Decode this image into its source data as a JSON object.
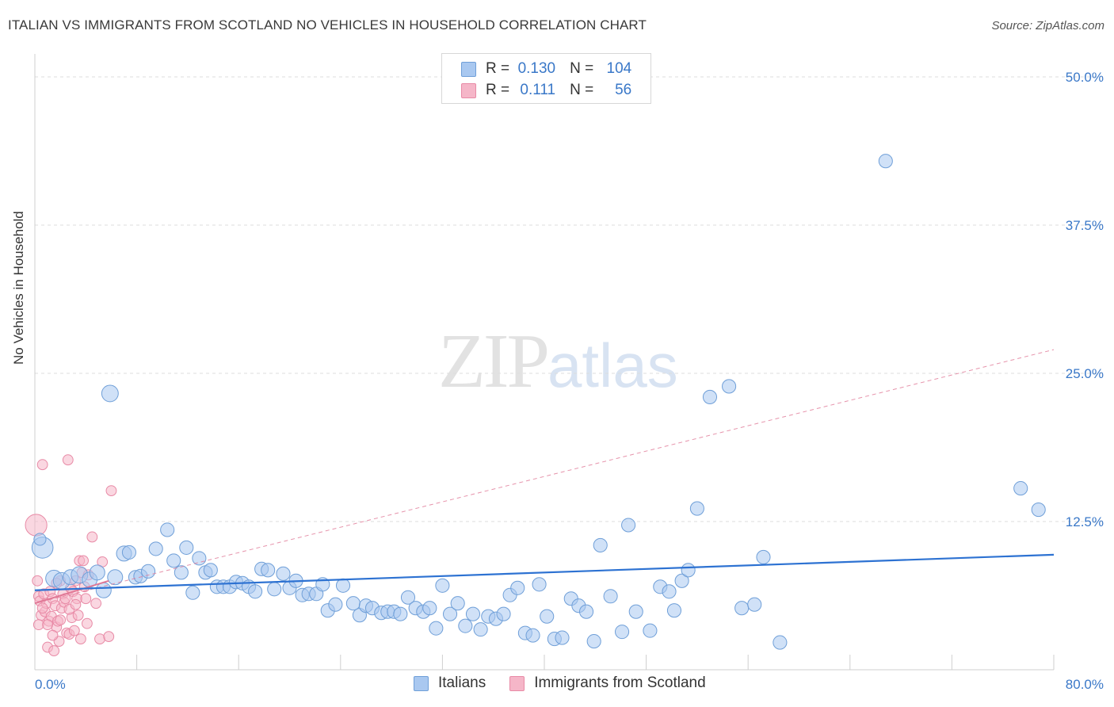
{
  "header": {
    "title": "ITALIAN VS IMMIGRANTS FROM SCOTLAND NO VEHICLES IN HOUSEHOLD CORRELATION CHART",
    "source": "Source: ZipAtlas.com"
  },
  "watermark": {
    "zip": "ZIP",
    "atlas": "atlas"
  },
  "legend": {
    "rows": [
      {
        "r_label": "R =",
        "r_value": "0.130",
        "n_label": "N =",
        "n_value": "104",
        "color": "#a9c8f0"
      },
      {
        "r_label": "R =",
        "r_value": "0.111",
        "n_label": "N =",
        "n_value": "56",
        "color": "#f5b6c8"
      }
    ]
  },
  "colors": {
    "blue_fill": "#a9c8f0",
    "blue_stroke": "#6f9fd8",
    "blue_line": "#2d72d2",
    "pink_fill": "#f5b6c8",
    "pink_stroke": "#e88aa6",
    "pink_line": "#e07896",
    "axis_text": "#3a78c8",
    "grid": "#dddddd"
  },
  "chart_data": {
    "type": "scatter",
    "title": "ITALIAN VS IMMIGRANTS FROM SCOTLAND NO VEHICLES IN HOUSEHOLD CORRELATION CHART",
    "xlabel": "",
    "ylabel": "No Vehicles in Household",
    "xlim": [
      0,
      80
    ],
    "ylim": [
      0,
      50
    ],
    "x_tick_labels": [
      "0.0%",
      "80.0%"
    ],
    "y_tick_labels": [
      "12.5%",
      "25.0%",
      "37.5%",
      "50.0%"
    ],
    "y_ticks": [
      12.5,
      25,
      37.5,
      50
    ],
    "series": [
      {
        "name": "Italians",
        "r": 0.13,
        "n": 104,
        "trend": {
          "x0": 0,
          "y0": 6.7,
          "x1": 80,
          "y1": 9.7,
          "style": "solid"
        },
        "points": [
          [
            0.6,
            10.3,
            1.4
          ],
          [
            0.4,
            11.0,
            0.8
          ],
          [
            1.5,
            7.7,
            1.1
          ],
          [
            2.1,
            7.5,
            1.1
          ],
          [
            2.8,
            7.8,
            1.0
          ],
          [
            3.5,
            8.0,
            1.1
          ],
          [
            4.3,
            7.6,
            1.0
          ],
          [
            4.9,
            8.2,
            1.0
          ],
          [
            5.4,
            6.7,
            1.0
          ],
          [
            5.9,
            23.3,
            1.1
          ],
          [
            6.3,
            7.8,
            1.0
          ],
          [
            7.0,
            9.8,
            1.0
          ],
          [
            7.4,
            9.9,
            0.9
          ],
          [
            7.9,
            7.8,
            0.9
          ],
          [
            8.3,
            7.9,
            0.9
          ],
          [
            8.9,
            8.3,
            0.9
          ],
          [
            9.5,
            10.2,
            0.9
          ],
          [
            10.4,
            11.8,
            0.9
          ],
          [
            10.9,
            9.2,
            0.9
          ],
          [
            11.5,
            8.2,
            0.9
          ],
          [
            11.9,
            10.3,
            0.9
          ],
          [
            12.4,
            6.5,
            0.9
          ],
          [
            12.9,
            9.4,
            0.9
          ],
          [
            13.4,
            8.2,
            0.9
          ],
          [
            13.8,
            8.4,
            0.9
          ],
          [
            14.3,
            7.0,
            0.9
          ],
          [
            14.8,
            7.0,
            0.9
          ],
          [
            15.3,
            7.0,
            0.9
          ],
          [
            15.8,
            7.4,
            0.9
          ],
          [
            16.3,
            7.3,
            0.9
          ],
          [
            16.8,
            7.0,
            0.9
          ],
          [
            17.3,
            6.6,
            0.9
          ],
          [
            17.8,
            8.5,
            0.9
          ],
          [
            18.3,
            8.4,
            0.9
          ],
          [
            18.8,
            6.8,
            0.9
          ],
          [
            19.5,
            8.1,
            0.9
          ],
          [
            20.0,
            6.9,
            0.9
          ],
          [
            20.5,
            7.5,
            0.9
          ],
          [
            21.0,
            6.3,
            0.9
          ],
          [
            21.5,
            6.4,
            0.9
          ],
          [
            22.1,
            6.4,
            0.9
          ],
          [
            22.6,
            7.2,
            0.9
          ],
          [
            23.0,
            5.0,
            0.9
          ],
          [
            23.6,
            5.5,
            0.9
          ],
          [
            24.2,
            7.1,
            0.9
          ],
          [
            25.0,
            5.6,
            0.9
          ],
          [
            25.5,
            4.6,
            0.9
          ],
          [
            26.0,
            5.4,
            0.9
          ],
          [
            26.5,
            5.2,
            0.9
          ],
          [
            27.2,
            4.8,
            0.9
          ],
          [
            27.7,
            4.9,
            0.9
          ],
          [
            28.2,
            4.9,
            0.9
          ],
          [
            28.7,
            4.7,
            0.9
          ],
          [
            29.3,
            6.1,
            0.9
          ],
          [
            29.9,
            5.2,
            0.9
          ],
          [
            30.5,
            4.9,
            0.9
          ],
          [
            31.0,
            5.2,
            0.9
          ],
          [
            31.5,
            3.5,
            0.9
          ],
          [
            32.0,
            7.1,
            0.9
          ],
          [
            32.6,
            4.7,
            0.9
          ],
          [
            33.2,
            5.6,
            0.9
          ],
          [
            33.8,
            3.7,
            0.9
          ],
          [
            34.4,
            4.7,
            0.9
          ],
          [
            35.0,
            3.4,
            0.9
          ],
          [
            35.6,
            4.5,
            0.9
          ],
          [
            36.2,
            4.3,
            0.9
          ],
          [
            36.8,
            4.7,
            0.9
          ],
          [
            37.3,
            6.3,
            0.9
          ],
          [
            37.9,
            6.9,
            0.9
          ],
          [
            38.5,
            3.1,
            0.9
          ],
          [
            39.1,
            2.9,
            0.9
          ],
          [
            39.6,
            7.2,
            0.9
          ],
          [
            40.2,
            4.5,
            0.9
          ],
          [
            40.8,
            2.6,
            0.9
          ],
          [
            41.4,
            2.7,
            0.9
          ],
          [
            42.1,
            6.0,
            0.9
          ],
          [
            42.7,
            5.4,
            0.9
          ],
          [
            43.3,
            4.9,
            0.9
          ],
          [
            43.9,
            2.4,
            0.9
          ],
          [
            44.4,
            10.5,
            0.9
          ],
          [
            45.2,
            6.2,
            0.9
          ],
          [
            46.1,
            3.2,
            0.9
          ],
          [
            46.6,
            12.2,
            0.9
          ],
          [
            47.2,
            4.9,
            0.9
          ],
          [
            48.3,
            3.3,
            0.9
          ],
          [
            49.1,
            7.0,
            0.9
          ],
          [
            49.8,
            6.6,
            0.9
          ],
          [
            50.2,
            5.0,
            0.9
          ],
          [
            50.8,
            7.5,
            0.9
          ],
          [
            51.3,
            8.4,
            0.9
          ],
          [
            52.0,
            13.6,
            0.9
          ],
          [
            53.0,
            23.0,
            0.9
          ],
          [
            54.5,
            23.9,
            0.9
          ],
          [
            55.5,
            5.2,
            0.9
          ],
          [
            56.5,
            5.5,
            0.9
          ],
          [
            57.2,
            9.5,
            0.9
          ],
          [
            58.5,
            2.3,
            0.9
          ],
          [
            66.8,
            42.9,
            0.9
          ],
          [
            77.4,
            15.3,
            0.9
          ],
          [
            78.8,
            13.5,
            0.9
          ]
        ]
      },
      {
        "name": "Immigrants from Scotland",
        "r": 0.111,
        "n": 56,
        "trend": {
          "x0": 0,
          "y0": 5.6,
          "x1": 80,
          "y1": 27.0,
          "style": "dashed"
        },
        "solid_segment": {
          "x0": 0,
          "y0": 5.6,
          "x1": 5.8,
          "y1": 7.5
        },
        "points": [
          [
            0.1,
            12.2,
            1.7
          ],
          [
            0.2,
            7.5,
            0.8
          ],
          [
            0.3,
            6.2,
            0.8
          ],
          [
            0.4,
            5.8,
            0.8
          ],
          [
            0.5,
            4.6,
            0.8
          ],
          [
            0.6,
            17.3,
            0.8
          ],
          [
            0.7,
            6.4,
            0.8
          ],
          [
            0.8,
            4.9,
            0.8
          ],
          [
            0.9,
            5.6,
            0.8
          ],
          [
            1.0,
            1.9,
            0.8
          ],
          [
            1.1,
            4.1,
            0.8
          ],
          [
            1.2,
            6.6,
            0.8
          ],
          [
            1.3,
            4.5,
            0.8
          ],
          [
            1.4,
            6.0,
            0.8
          ],
          [
            1.5,
            1.6,
            0.8
          ],
          [
            1.6,
            5.4,
            0.8
          ],
          [
            1.7,
            3.6,
            0.8
          ],
          [
            1.8,
            4.1,
            0.8
          ],
          [
            1.9,
            2.4,
            0.8
          ],
          [
            2.0,
            7.5,
            0.8
          ],
          [
            2.1,
            5.2,
            0.8
          ],
          [
            2.2,
            6.4,
            0.8
          ],
          [
            2.3,
            5.7,
            0.8
          ],
          [
            2.4,
            6.0,
            0.8
          ],
          [
            2.5,
            3.1,
            0.8
          ],
          [
            2.6,
            17.7,
            0.8
          ],
          [
            2.7,
            3.0,
            0.8
          ],
          [
            2.8,
            6.9,
            0.8
          ],
          [
            2.9,
            4.4,
            0.8
          ],
          [
            3.0,
            6.6,
            0.8
          ],
          [
            3.1,
            3.3,
            0.8
          ],
          [
            3.2,
            7.5,
            0.8
          ],
          [
            3.3,
            6.0,
            0.8
          ],
          [
            3.4,
            4.6,
            0.8
          ],
          [
            3.5,
            9.2,
            0.8
          ],
          [
            3.6,
            2.6,
            0.8
          ],
          [
            3.7,
            8.2,
            0.8
          ],
          [
            3.8,
            9.2,
            0.8
          ],
          [
            3.9,
            7.0,
            0.8
          ],
          [
            4.0,
            6.0,
            0.8
          ],
          [
            4.1,
            3.9,
            0.8
          ],
          [
            4.2,
            8.0,
            0.8
          ],
          [
            4.5,
            11.2,
            0.8
          ],
          [
            4.8,
            5.6,
            0.8
          ],
          [
            5.1,
            2.6,
            0.8
          ],
          [
            5.3,
            9.1,
            0.8
          ],
          [
            5.8,
            2.8,
            0.8
          ],
          [
            6.0,
            15.1,
            0.8
          ],
          [
            0.3,
            3.8,
            0.8
          ],
          [
            0.6,
            5.2,
            0.8
          ],
          [
            1.0,
            3.8,
            0.8
          ],
          [
            1.4,
            2.9,
            0.8
          ],
          [
            2.0,
            4.2,
            0.8
          ],
          [
            2.7,
            5.1,
            0.8
          ],
          [
            3.2,
            5.5,
            0.8
          ],
          [
            1.7,
            7.3,
            0.8
          ]
        ]
      }
    ]
  },
  "bottom_legend": {
    "items": [
      {
        "label": "Italians",
        "color": "#a9c8f0"
      },
      {
        "label": "Immigrants from Scotland",
        "color": "#f5b6c8"
      }
    ]
  }
}
